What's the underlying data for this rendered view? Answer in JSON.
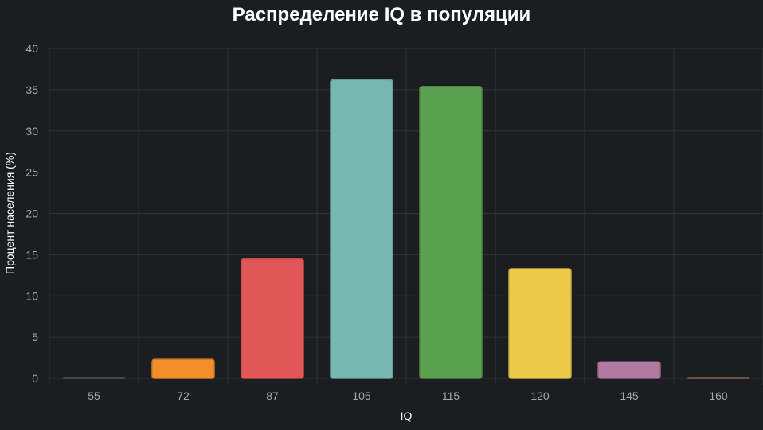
{
  "chart_data": {
    "type": "bar",
    "title": "Распределение IQ в популяции",
    "xlabel": "IQ",
    "ylabel": "Процент населения (%)",
    "categories": [
      "55",
      "72",
      "87",
      "105",
      "115",
      "120",
      "145",
      "160"
    ],
    "values": [
      0.1,
      2.3,
      14.5,
      36.2,
      35.4,
      13.3,
      2.0,
      0.1
    ],
    "colors": [
      "#666666",
      "#f28e2c",
      "#e15759",
      "#76b7b2",
      "#59a14f",
      "#edc949",
      "#b07aa1",
      "#9c755f"
    ],
    "ylim": [
      0,
      40
    ],
    "yticks": [
      "0",
      "5",
      "10",
      "15",
      "20",
      "25",
      "30",
      "35",
      "40"
    ],
    "grid": true,
    "legend": "none"
  },
  "theme": {
    "background": "#1c1d21",
    "grid": "#2f3136",
    "tick_text": "#a8a8a8",
    "label_text": "#ffffff"
  }
}
